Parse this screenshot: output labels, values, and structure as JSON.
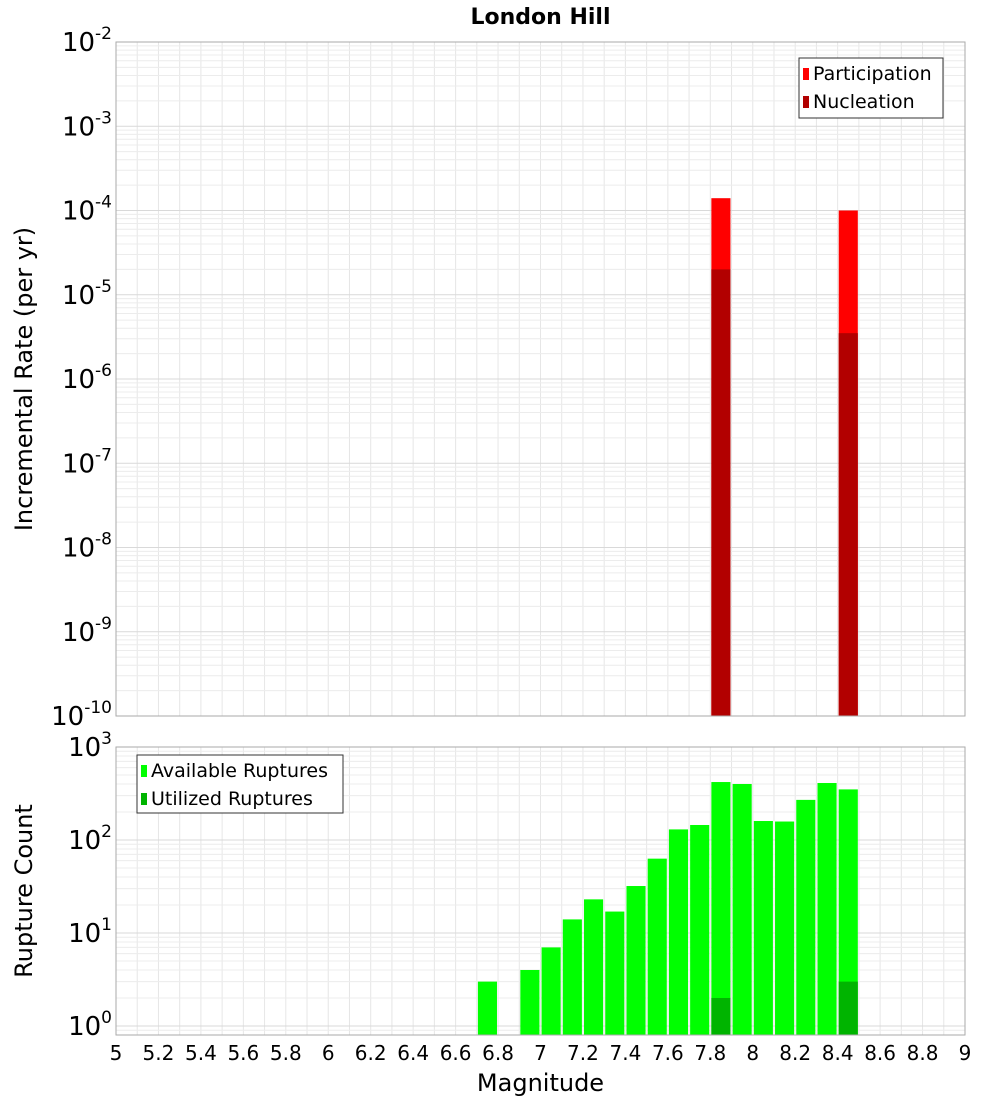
{
  "chart_data": [
    {
      "type": "bar",
      "title": "London Hill",
      "ylabel": "Incremental Rate (per yr)",
      "xlabel": "",
      "yscale": "log",
      "xlim": [
        5,
        9
      ],
      "ylim": [
        1e-10,
        0.01
      ],
      "yticks": [
        {
          "base": "10",
          "exp": "-10"
        },
        {
          "base": "10",
          "exp": "-9"
        },
        {
          "base": "10",
          "exp": "-8"
        },
        {
          "base": "10",
          "exp": "-7"
        },
        {
          "base": "10",
          "exp": "-6"
        },
        {
          "base": "10",
          "exp": "-5"
        },
        {
          "base": "10",
          "exp": "-4"
        },
        {
          "base": "10",
          "exp": "-3"
        },
        {
          "base": "10",
          "exp": "-2"
        }
      ],
      "grid": true,
      "legend_position": "top-right",
      "series": [
        {
          "name": "Participation",
          "color": "#ff0000",
          "x": [
            7.85,
            8.45
          ],
          "values": [
            0.00014,
            0.0001
          ]
        },
        {
          "name": "Nucleation",
          "color": "#b20000",
          "x": [
            7.85,
            8.45
          ],
          "values": [
            2e-05,
            3.5e-06
          ]
        }
      ]
    },
    {
      "type": "bar",
      "title": "",
      "ylabel": "Rupture Count",
      "xlabel": "Magnitude",
      "yscale": "log",
      "xlim": [
        5,
        9
      ],
      "ylim": [
        0.8,
        1000
      ],
      "yticks": [
        {
          "base": "10",
          "exp": "0"
        },
        {
          "base": "10",
          "exp": "1"
        },
        {
          "base": "10",
          "exp": "2"
        },
        {
          "base": "10",
          "exp": "3"
        }
      ],
      "xticks": [
        "5",
        "5.2",
        "5.4",
        "5.6",
        "5.8",
        "6",
        "6.2",
        "6.4",
        "6.6",
        "6.8",
        "7",
        "7.2",
        "7.4",
        "7.6",
        "7.8",
        "8",
        "8.2",
        "8.4",
        "8.6",
        "8.8",
        "9"
      ],
      "grid": true,
      "legend_position": "top-left",
      "series": [
        {
          "name": "Available Ruptures",
          "color": "#00ff00",
          "x": [
            6.75,
            6.95,
            7.05,
            7.15,
            7.25,
            7.35,
            7.45,
            7.55,
            7.65,
            7.75,
            7.85,
            7.95,
            8.05,
            8.15,
            8.25,
            8.35,
            8.45
          ],
          "values": [
            3,
            4,
            7,
            14,
            23,
            17,
            32,
            63,
            130,
            145,
            420,
            400,
            160,
            158,
            270,
            410,
            350
          ]
        },
        {
          "name": "Utilized Ruptures",
          "color": "#00b400",
          "x": [
            7.85,
            8.45
          ],
          "values": [
            2,
            3
          ]
        }
      ]
    }
  ]
}
